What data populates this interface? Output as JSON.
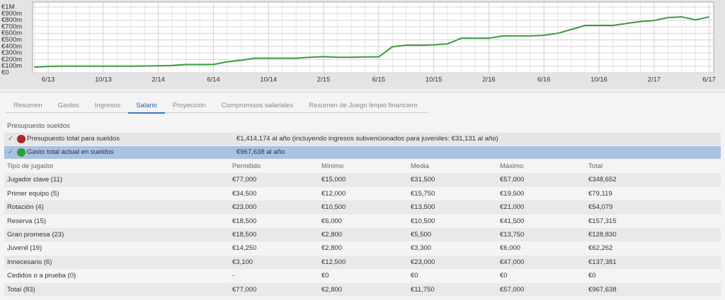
{
  "chart_data": {
    "type": "line",
    "categories": [
      null,
      "6/13",
      null,
      null,
      null,
      "10/13",
      null,
      null,
      null,
      "2/14",
      null,
      null,
      null,
      "6/14",
      null,
      null,
      null,
      "10/14",
      null,
      null,
      null,
      "2/15",
      null,
      null,
      null,
      "6/15",
      null,
      null,
      null,
      "10/15",
      null,
      null,
      null,
      "2/16",
      null,
      null,
      null,
      "6/16",
      null,
      null,
      null,
      "10/16",
      null,
      null,
      null,
      "2/17",
      null,
      null,
      null,
      "6/17"
    ],
    "series": [
      {
        "color": "#3a9a3a",
        "values": [
          85,
          95,
          100,
          100,
          100,
          100,
          100,
          100,
          102,
          105,
          110,
          125,
          125,
          125,
          165,
          190,
          220,
          220,
          220,
          220,
          235,
          245,
          235,
          235,
          240,
          240,
          395,
          420,
          420,
          425,
          440,
          525,
          525,
          525,
          560,
          560,
          560,
          570,
          600,
          660,
          720,
          720,
          720,
          750,
          780,
          795,
          840,
          850,
          805,
          850
        ]
      }
    ],
    "ylim": [
      0,
      1000
    ],
    "yticks": [
      {
        "value": 0,
        "label": "€0"
      },
      {
        "value": 100,
        "label": "€100m"
      },
      {
        "value": 200,
        "label": "€200m"
      },
      {
        "value": 300,
        "label": "€300m"
      },
      {
        "value": 400,
        "label": "€400m"
      },
      {
        "value": 500,
        "label": "€500m"
      },
      {
        "value": 600,
        "label": "€600m"
      },
      {
        "value": 700,
        "label": "€700m"
      },
      {
        "value": 800,
        "label": "€800m"
      },
      {
        "value": 900,
        "label": "€900m"
      },
      {
        "value": 1000,
        "label": "€1M"
      }
    ],
    "grid": true
  },
  "tabs": [
    "Resumen",
    "Gastos",
    "Ingresos",
    "Salario",
    "Proyección",
    "Compromisos salariales",
    "Resumen de Juego limpio financiero"
  ],
  "budget": {
    "title": "Presupuesto sueldos",
    "rows": [
      {
        "label": "Presupuesto total para sueldos",
        "value": "€1,414,174 al año (incluyendo ingresos subvencionados para juveniles: €31,131 al año)",
        "color": "#b0242a"
      },
      {
        "label": "Gasto total actual en sueldos",
        "value": "€967,638 al año",
        "color": "#2f9e36"
      }
    ]
  },
  "table": {
    "columns": [
      "Tipo de jugador",
      "Permitido",
      "Mínimo",
      "Media",
      "Máximo",
      "Total"
    ],
    "rows": [
      [
        "Jugador clave (11)",
        "€77,000",
        "€15,000",
        "€31,500",
        "€57,000",
        "€348,652"
      ],
      [
        "Primer equipo (5)",
        "€34,500",
        "€12,000",
        "€15,750",
        "€19,500",
        "€79,119"
      ],
      [
        "Rotación (4)",
        "€23,000",
        "€10,500",
        "€13,500",
        "€21,000",
        "€54,079"
      ],
      [
        "Reserva (15)",
        "€18,500",
        "€6,000",
        "€10,500",
        "€41,500",
        "€157,315"
      ],
      [
        "Gran promesa (23)",
        "€18,500",
        "€2,800",
        "€5,500",
        "€13,750",
        "€128,830"
      ],
      [
        "Juvenil (19)",
        "€14,250",
        "€2,800",
        "€3,300",
        "€6,000",
        "€62,262"
      ],
      [
        "Innecesario (6)",
        "€3,100",
        "€12,500",
        "€23,000",
        "€47,000",
        "€137,381"
      ],
      [
        "Cedidos o a prueba (0)",
        "-",
        "€0",
        "€0",
        "€0",
        "€0"
      ],
      [
        "Total   (83)",
        "€77,000",
        "€2,800",
        "€11,750",
        "€57,000",
        "€967,638"
      ]
    ]
  }
}
